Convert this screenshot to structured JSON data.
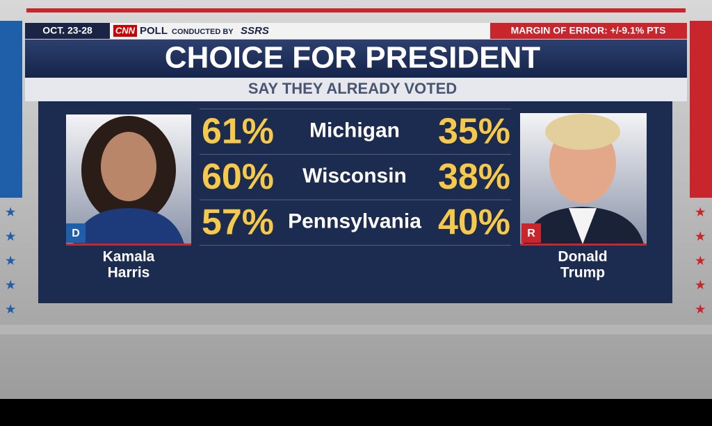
{
  "header": {
    "date": "OCT. 23-28",
    "brand": "CNN",
    "poll": "POLL",
    "conducted_by": "CONDUCTED BY",
    "pollster": "SSRS",
    "margin": "MARGIN OF ERROR: +/-9.1% PTS"
  },
  "title": "CHOICE FOR PRESIDENT",
  "subtitle": "SAY THEY ALREADY VOTED",
  "candidates": [
    {
      "first": "Kamala",
      "last": "Harris",
      "party": "D"
    },
    {
      "first": "Donald",
      "last": "Trump",
      "party": "R"
    }
  ],
  "table": {
    "rows": [
      {
        "state": "Michigan",
        "harris": "61%",
        "trump": "35%"
      },
      {
        "state": "Wisconsin",
        "harris": "60%",
        "trump": "38%"
      },
      {
        "state": "Pennsylvania",
        "harris": "57%",
        "trump": "40%"
      }
    ]
  }
}
